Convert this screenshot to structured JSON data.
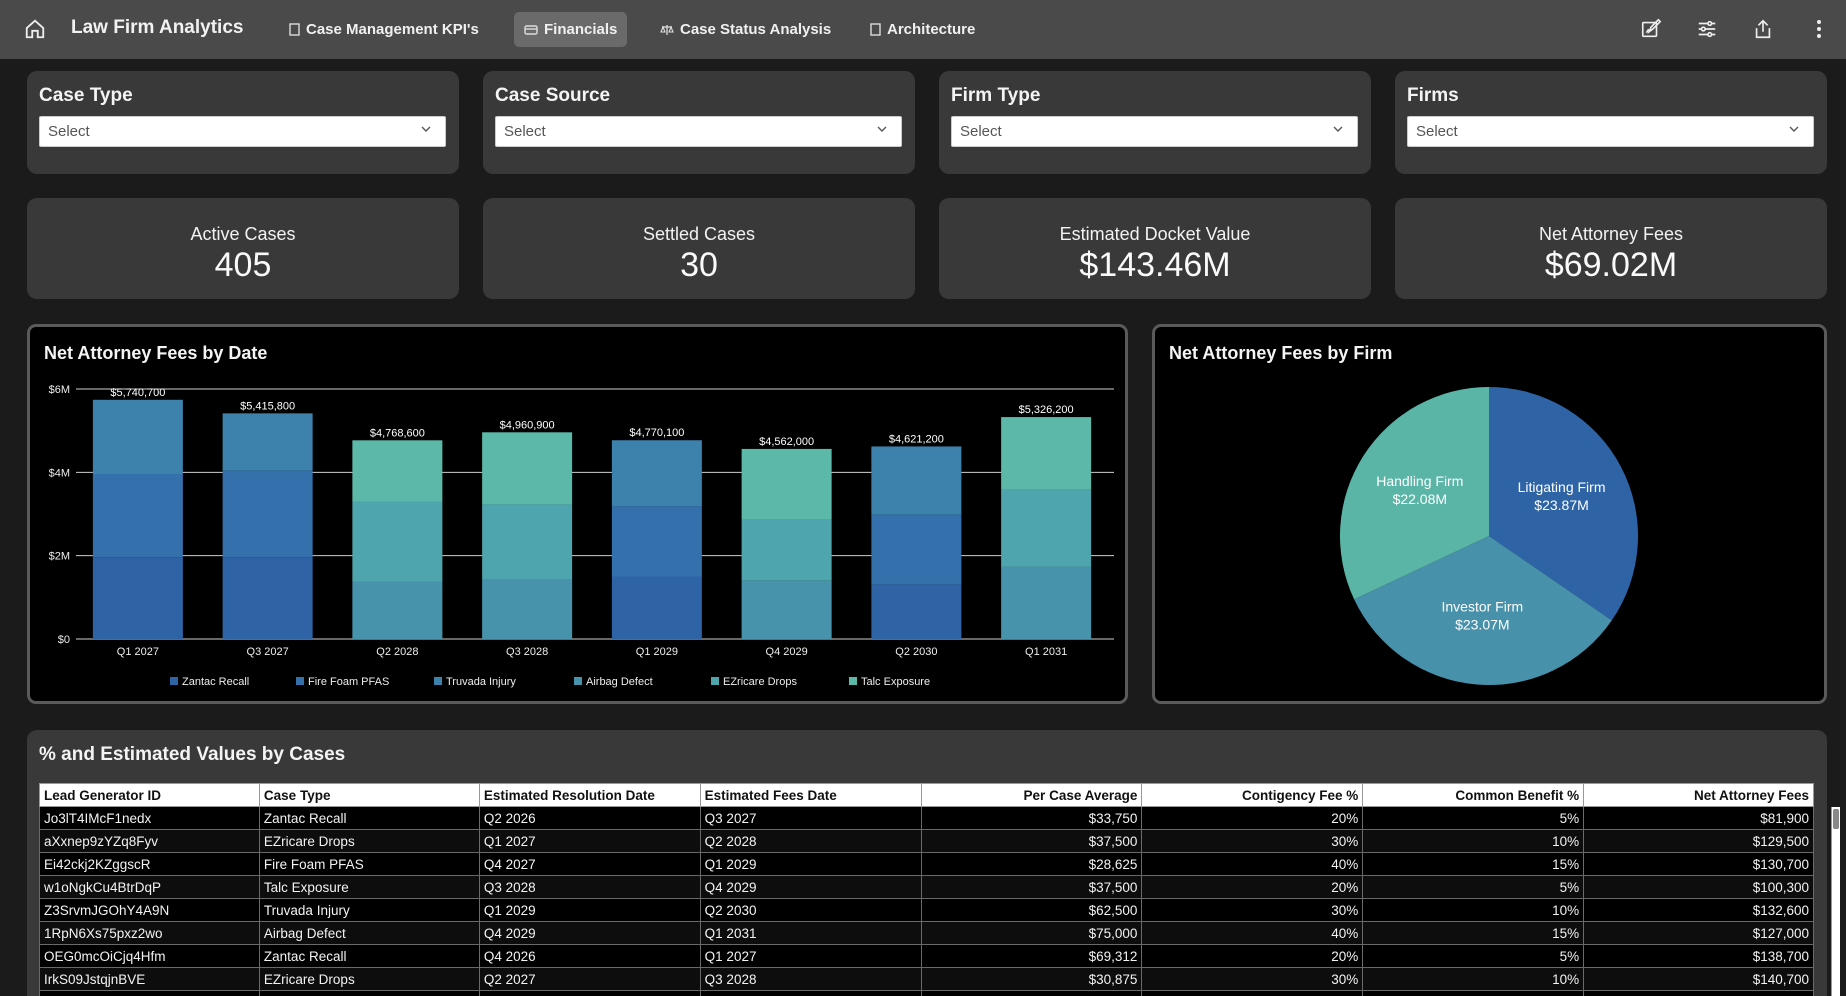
{
  "app": {
    "title": "Law Firm Analytics"
  },
  "nav": {
    "tabs": [
      {
        "label": "Case Management KPI's",
        "icon": "document-icon"
      },
      {
        "label": "Financials",
        "icon": "card-icon",
        "active": true
      },
      {
        "label": "Case Status Analysis",
        "icon": "scale-icon"
      },
      {
        "label": "Architecture",
        "icon": "document-icon"
      }
    ]
  },
  "filters": [
    {
      "title": "Case Type",
      "placeholder": "Select"
    },
    {
      "title": "Case Source",
      "placeholder": "Select"
    },
    {
      "title": "Firm Type",
      "placeholder": "Select"
    },
    {
      "title": "Firms",
      "placeholder": "Select"
    }
  ],
  "kpis": [
    {
      "label": "Active Cases",
      "value": "405"
    },
    {
      "label": "Settled Cases",
      "value": "30"
    },
    {
      "label": "Estimated Docket Value",
      "value": "$143.46M"
    },
    {
      "label": "Net Attorney Fees",
      "value": "$69.02M"
    }
  ],
  "chart_data": [
    {
      "type": "bar",
      "stacked": true,
      "title": "Net Attorney Fees by Date",
      "categories": [
        "Q1 2027",
        "Q3 2027",
        "Q2 2028",
        "Q3 2028",
        "Q1 2029",
        "Q4 2029",
        "Q2 2030",
        "Q1 2031"
      ],
      "totals": [
        5740700,
        5415800,
        4768600,
        4960900,
        4770100,
        4562000,
        4621200,
        5326200
      ],
      "total_labels": [
        "$5,740,700",
        "$5,415,800",
        "$4,768,600",
        "$4,960,900",
        "$4,770,100",
        "$4,562,000",
        "$4,621,200",
        "$5,326,200"
      ],
      "y_ticks": [
        "$0",
        "$2M",
        "$4M",
        "$6M"
      ],
      "ylim": [
        0,
        6000000
      ],
      "grid": true,
      "legend_position": "bottom",
      "series": [
        {
          "name": "Zantac Recall",
          "color": "#2e64a6",
          "values": [
            1960000,
            1960000,
            0,
            0,
            1500000,
            0,
            1300000,
            0
          ]
        },
        {
          "name": "Fire Foam PFAS",
          "color": "#3470ab",
          "values": [
            2000000,
            2080000,
            0,
            0,
            1690000,
            0,
            1680000,
            0
          ]
        },
        {
          "name": "Truvada Injury",
          "color": "#3d82ad",
          "values": [
            1780700,
            1375800,
            0,
            0,
            1580100,
            0,
            1641200,
            0
          ]
        },
        {
          "name": "Airbag Defect",
          "color": "#4893ac",
          "values": [
            0,
            0,
            1380000,
            1440000,
            0,
            1400000,
            0,
            1730000
          ]
        },
        {
          "name": "EZricare Drops",
          "color": "#4fa5ad",
          "values": [
            0,
            0,
            1920000,
            1790000,
            0,
            1480000,
            0,
            1870000
          ]
        },
        {
          "name": "Talc Exposure",
          "color": "#5cb8a8",
          "values": [
            0,
            0,
            1468600,
            1730900,
            0,
            1682000,
            0,
            1726200
          ]
        }
      ]
    },
    {
      "type": "pie",
      "title": "Net Attorney Fees by Firm",
      "slices": [
        {
          "label": "Litigating Firm",
          "value": 23.87,
          "display": "$23.87M",
          "color": "#2e64a6"
        },
        {
          "label": "Investor Firm",
          "value": 23.07,
          "display": "$23.07M",
          "color": "#4791ab"
        },
        {
          "label": "Handling Firm",
          "value": 22.08,
          "display": "$22.08M",
          "color": "#5ab5a6"
        }
      ]
    }
  ],
  "table": {
    "title": "% and Estimated Values by Cases",
    "columns": [
      "Lead Generator ID",
      "Case Type",
      "Estimated Resolution Date",
      "Estimated Fees Date",
      "Per Case Average",
      "Contigency Fee %",
      "Common Benefit %",
      "Net Attorney Fees"
    ],
    "rows": [
      [
        "Jo3lT4IMcF1nedx",
        "Zantac Recall",
        "Q2 2026",
        "Q3 2027",
        "$33,750",
        "20%",
        "5%",
        "$81,900"
      ],
      [
        "aXxnep9zYZq8Fyv",
        "EZricare Drops",
        "Q1 2027",
        "Q2 2028",
        "$37,500",
        "30%",
        "10%",
        "$129,500"
      ],
      [
        "Ei42ckj2KZggscR",
        "Fire Foam PFAS",
        "Q4 2027",
        "Q1 2029",
        "$28,625",
        "40%",
        "15%",
        "$130,700"
      ],
      [
        "w1oNgkCu4BtrDqP",
        "Talc Exposure",
        "Q3 2028",
        "Q4 2029",
        "$37,500",
        "20%",
        "5%",
        "$100,300"
      ],
      [
        "Z3SrvmJGOhY4A9N",
        "Truvada Injury",
        "Q1 2029",
        "Q2 2030",
        "$62,500",
        "30%",
        "10%",
        "$132,600"
      ],
      [
        "1RpN6Xs75pxz2wo",
        "Airbag Defect",
        "Q4 2029",
        "Q1 2031",
        "$75,000",
        "40%",
        "15%",
        "$127,000"
      ],
      [
        "OEG0mcOiCjq4Hfm",
        "Zantac Recall",
        "Q4 2026",
        "Q1 2027",
        "$69,312",
        "20%",
        "5%",
        "$138,700"
      ],
      [
        "IrkS09JstqjnBVE",
        "EZricare Drops",
        "Q2 2027",
        "Q3 2028",
        "$30,875",
        "30%",
        "10%",
        "$140,700"
      ],
      [
        "",
        "",
        "",
        "",
        "",
        "",
        "",
        ""
      ]
    ]
  },
  "colors": {
    "topbar": "#4a4a4a",
    "card": "#393939",
    "panel_border": "#5a5a5a"
  }
}
